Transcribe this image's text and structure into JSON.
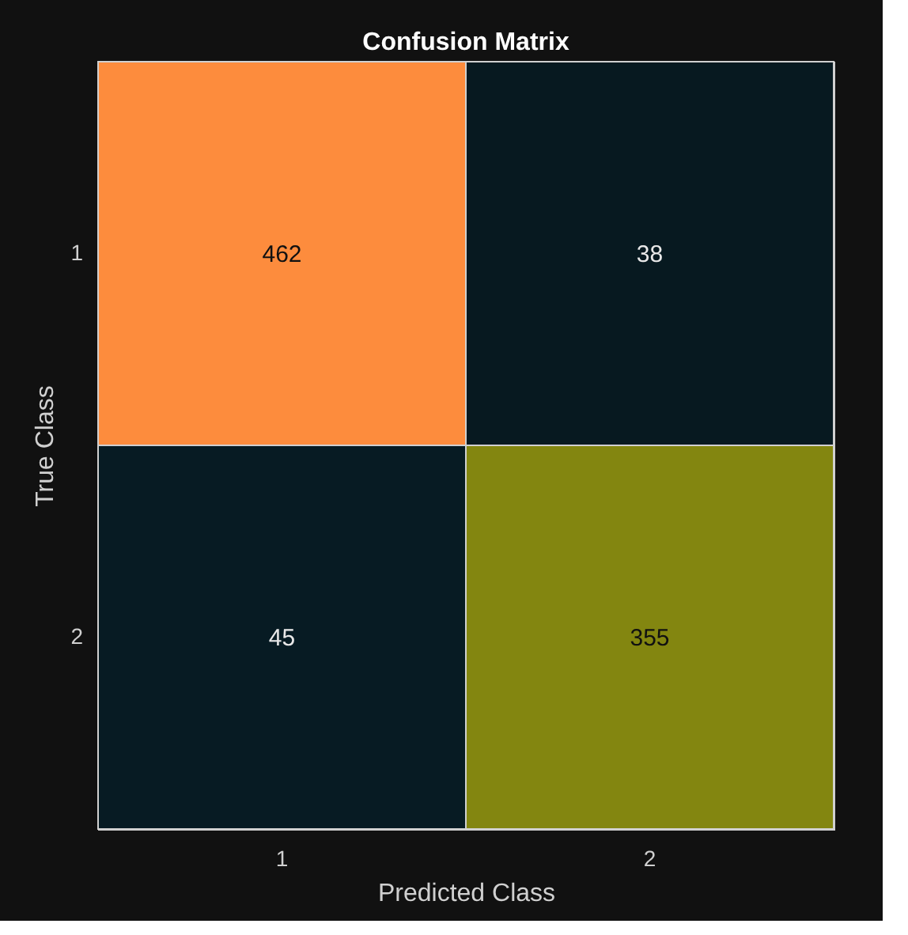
{
  "chart_data": {
    "type": "heatmap",
    "title": "Confusion Matrix",
    "xlabel": "Predicted Class",
    "ylabel": "True Class",
    "data_labels": true,
    "categories": [
      "1",
      "2"
    ],
    "y_categories": [
      "1",
      "2"
    ],
    "cells": [
      [
        462,
        38
      ],
      [
        45,
        355
      ]
    ]
  }
}
